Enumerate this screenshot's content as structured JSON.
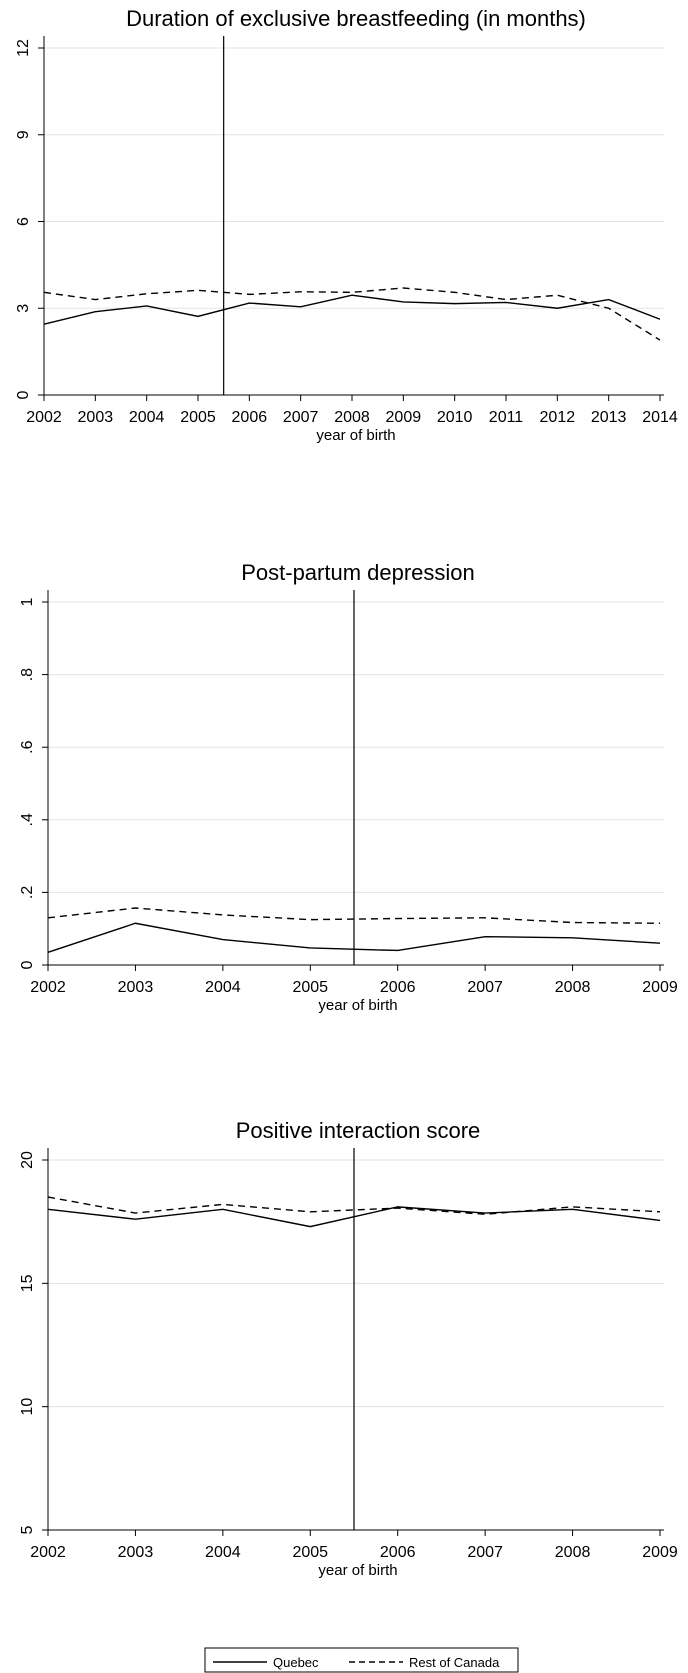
{
  "chart_data": [
    {
      "type": "line",
      "title": "Duration of exclusive breastfeeding (in months)",
      "xlabel": "year of birth",
      "ylabel": "",
      "x": [
        2002,
        2003,
        2004,
        2005,
        2006,
        2007,
        2008,
        2009,
        2010,
        2011,
        2012,
        2013,
        2014
      ],
      "x_ticks": [
        "2002",
        "2003",
        "2004",
        "2005",
        "2006",
        "2007",
        "2008",
        "2009",
        "2010",
        "2011",
        "2012",
        "2013",
        "2014"
      ],
      "xlim": [
        2002,
        2014
      ],
      "ylim": [
        0,
        12
      ],
      "y_ticks": [
        "0",
        "3",
        "6",
        "9",
        "12"
      ],
      "y_tick_values": [
        0,
        3,
        6,
        9,
        12
      ],
      "reference_line_x": 2005.5,
      "grid": true,
      "series": [
        {
          "name": "Quebec",
          "style": "solid",
          "values": [
            2.45,
            2.88,
            3.08,
            2.72,
            3.18,
            3.05,
            3.45,
            3.22,
            3.16,
            3.2,
            3.0,
            3.3,
            2.62
          ]
        },
        {
          "name": "Rest of Canada",
          "style": "dashed",
          "values": [
            3.55,
            3.3,
            3.5,
            3.62,
            3.48,
            3.57,
            3.55,
            3.7,
            3.55,
            3.3,
            3.45,
            3.0,
            1.9
          ]
        }
      ]
    },
    {
      "type": "line",
      "title": "Post-partum depression",
      "xlabel": "year of birth",
      "ylabel": "",
      "x": [
        2002,
        2003,
        2004,
        2005,
        2006,
        2007,
        2008,
        2009
      ],
      "x_ticks": [
        "2002",
        "2003",
        "2004",
        "2005",
        "2006",
        "2007",
        "2008",
        "2009"
      ],
      "xlim": [
        2002,
        2009
      ],
      "ylim": [
        0,
        1
      ],
      "y_ticks": [
        "0",
        ".2",
        ".4",
        ".6",
        ".8",
        "1"
      ],
      "y_tick_values": [
        0,
        0.2,
        0.4,
        0.6,
        0.8,
        1
      ],
      "reference_line_x": 2005.5,
      "grid": true,
      "series": [
        {
          "name": "Quebec",
          "style": "solid",
          "values": [
            0.035,
            0.115,
            0.07,
            0.047,
            0.04,
            0.078,
            0.075,
            0.06
          ]
        },
        {
          "name": "Rest of Canada",
          "style": "dashed",
          "values": [
            0.13,
            0.157,
            0.138,
            0.125,
            0.128,
            0.13,
            0.117,
            0.115
          ]
        }
      ]
    },
    {
      "type": "line",
      "title": "Positive interaction score",
      "xlabel": "year of birth",
      "ylabel": "",
      "x": [
        2002,
        2003,
        2004,
        2005,
        2006,
        2007,
        2008,
        2009
      ],
      "x_ticks": [
        "2002",
        "2003",
        "2004",
        "2005",
        "2006",
        "2007",
        "2008",
        "2009"
      ],
      "xlim": [
        2002,
        2009
      ],
      "ylim": [
        5,
        20
      ],
      "y_ticks": [
        "5",
        "10",
        "15",
        "20"
      ],
      "y_tick_values": [
        5,
        10,
        15,
        20
      ],
      "reference_line_x": 2005.5,
      "grid": true,
      "series": [
        {
          "name": "Quebec",
          "style": "solid",
          "values": [
            18.0,
            17.6,
            18.0,
            17.3,
            18.1,
            17.85,
            18.0,
            17.55
          ]
        },
        {
          "name": "Rest of Canada",
          "style": "dashed",
          "values": [
            18.5,
            17.85,
            18.2,
            17.9,
            18.05,
            17.8,
            18.1,
            17.9
          ]
        }
      ]
    }
  ],
  "legend": {
    "placement": "bottom",
    "entries": [
      {
        "label": "Quebec",
        "style": "solid"
      },
      {
        "label": "Rest of Canada",
        "style": "dashed"
      }
    ]
  }
}
